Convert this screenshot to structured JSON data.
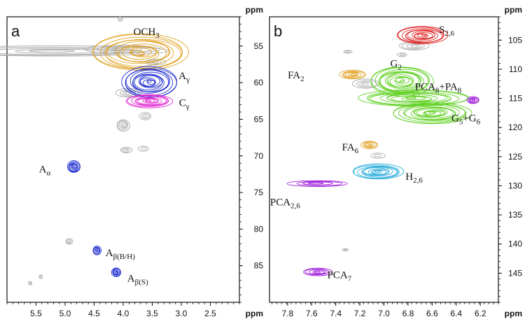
{
  "chart_data": [
    {
      "type": "2D HSQC NMR contour",
      "panel_label": "a",
      "x_unit": "ppm",
      "y_unit": "ppm",
      "x_range": [
        6.0,
        2.0
      ],
      "y_range": [
        51,
        90
      ],
      "x_ticks": [
        "5.5",
        "5.0",
        "4.5",
        "4.0",
        "3.5",
        "3.0",
        "2.5"
      ],
      "y_ticks": [
        "55",
        "60",
        "65",
        "70",
        "75",
        "80",
        "85"
      ],
      "signals": [
        {
          "label_main": "OCH",
          "label_sub": "3",
          "x": 3.7,
          "y": 55.9,
          "x_span": 1.65,
          "y_span": 5.0,
          "color": "#e0a020",
          "label_x": 3.6,
          "label_y": 53.2
        },
        {
          "label_main": "A",
          "label_sub": "γ",
          "x": 3.55,
          "y": 59.9,
          "x_span": 0.95,
          "y_span": 4.2,
          "color": "#1a2ad0",
          "label_x": 2.95,
          "label_y": 59.2
        },
        {
          "label_main": "C",
          "label_sub": "γ",
          "x": 3.55,
          "y": 62.5,
          "x_span": 0.8,
          "y_span": 1.8,
          "color": "#e020d0",
          "label_x": 2.95,
          "label_y": 62.9
        },
        {
          "label_main": "A",
          "label_sub": "α",
          "x": 4.85,
          "y": 71.5,
          "x_span": 0.22,
          "y_span": 1.6,
          "color": "#1a2ad0",
          "label_x": 5.35,
          "label_y": 72.0
        },
        {
          "label_main": "A",
          "label_sub": "β(B/H)",
          "x": 4.45,
          "y": 82.9,
          "x_span": 0.14,
          "y_span": 1.2,
          "color": "#1a2ad0",
          "label_x": 4.05,
          "label_y": 83.4
        },
        {
          "label_main": "A",
          "label_sub": "β(S)",
          "x": 4.12,
          "y": 85.9,
          "x_span": 0.16,
          "y_span": 1.2,
          "color": "#1a2ad0",
          "label_x": 3.75,
          "label_y": 86.9
        }
      ],
      "unassigned": [
        {
          "x": 5.2,
          "y": 55.7,
          "x_span": 3.9,
          "y_span": 1.4
        },
        {
          "x": 4.0,
          "y": 55.4,
          "x_span": 1.3,
          "y_span": 1.1
        },
        {
          "x": 3.45,
          "y": 57.2,
          "x_span": 0.35,
          "y_span": 0.8
        },
        {
          "x": 3.9,
          "y": 61.4,
          "x_span": 0.45,
          "y_span": 1.2
        },
        {
          "x": 4.0,
          "y": 65.8,
          "x_span": 0.22,
          "y_span": 1.6
        },
        {
          "x": 3.62,
          "y": 64.6,
          "x_span": 0.2,
          "y_span": 1.0
        },
        {
          "x": 3.95,
          "y": 69.2,
          "x_span": 0.2,
          "y_span": 0.8
        },
        {
          "x": 3.65,
          "y": 69.0,
          "x_span": 0.18,
          "y_span": 0.7
        },
        {
          "x": 4.93,
          "y": 81.7,
          "x_span": 0.12,
          "y_span": 0.8
        },
        {
          "x": 4.05,
          "y": 51.3,
          "x_span": 0.08,
          "y_span": 0.6
        },
        {
          "x": 5.42,
          "y": 86.5,
          "x_span": 0.06,
          "y_span": 0.5
        },
        {
          "x": 5.6,
          "y": 87.4,
          "x_span": 0.06,
          "y_span": 0.5
        }
      ]
    },
    {
      "type": "2D HSQC NMR contour",
      "panel_label": "b",
      "x_unit": "ppm",
      "y_unit": "ppm",
      "x_range": [
        7.95,
        6.05
      ],
      "y_range": [
        101,
        150
      ],
      "x_ticks": [
        "7.8",
        "7.6",
        "7.4",
        "7.2",
        "7.0",
        "6.8",
        "6.6",
        "6.4",
        "6.2"
      ],
      "y_ticks": [
        "105",
        "110",
        "115",
        "120",
        "125",
        "130",
        "135",
        "140",
        "145"
      ],
      "signals": [
        {
          "label_main": "S",
          "label_sub": "2,6",
          "x": 6.68,
          "y": 104.2,
          "x_span": 0.42,
          "y_span": 3.0,
          "color": "#e02020",
          "label_x": 6.48,
          "label_y": 103.4
        },
        {
          "label_main": "FA",
          "label_sub": "2",
          "x": 7.26,
          "y": 110.9,
          "x_span": 0.22,
          "y_span": 1.5,
          "color": "#e0a020",
          "label_x": 7.73,
          "label_y": 111.2
        },
        {
          "label_main": "G",
          "label_sub": "2",
          "x": 6.85,
          "y": 112.0,
          "x_span": 0.52,
          "y_span": 5.0,
          "color": "#5fd020",
          "label_x": 6.9,
          "label_y": 109.2
        },
        {
          "label_main": "PCA",
          "label_sub": "8",
          "label_main2": "+PA",
          "label_sub2": "8",
          "x": 6.75,
          "y": 115.0,
          "x_span": 0.92,
          "y_span": 2.8,
          "color": "#5fd020",
          "label_x": 6.55,
          "label_y": 113.2
        },
        {
          "label_main": "G",
          "label_sub": "5",
          "label_main2": "+G",
          "label_sub2": "6",
          "x": 6.6,
          "y": 117.5,
          "x_span": 0.65,
          "y_span": 3.6,
          "color": "#5fd020",
          "label_x": 6.32,
          "label_y": 118.6
        },
        {
          "label_main": "FA",
          "label_sub": "6",
          "x": 7.12,
          "y": 123.0,
          "x_span": 0.14,
          "y_span": 1.3,
          "color": "#e0a020",
          "label_x": 7.28,
          "label_y": 123.6
        },
        {
          "label_main": "H",
          "label_sub": "2,6",
          "x": 7.05,
          "y": 127.6,
          "x_span": 0.42,
          "y_span": 2.6,
          "color": "#20a8d8",
          "label_x": 6.75,
          "label_y": 128.6
        },
        {
          "label_main": "PCA",
          "label_sub": "2,6",
          "x": 7.55,
          "y": 129.6,
          "x_span": 0.5,
          "y_span": 1.0,
          "color": "#9a10d8",
          "label_x": 7.82,
          "label_y": 133.0
        },
        {
          "label_main": "PCA",
          "label_sub": "7",
          "x": 7.55,
          "y": 144.8,
          "x_span": 0.24,
          "y_span": 1.3,
          "color": "#9a10d8",
          "label_x": 7.37,
          "label_y": 145.5
        },
        {
          "label_main": "",
          "label_sub": "",
          "x": 6.26,
          "y": 115.3,
          "x_span": 0.1,
          "y_span": 1.2,
          "color": "#9a10d8",
          "label_x": 6.26,
          "label_y": 115.3
        }
      ],
      "unassigned": [
        {
          "x": 6.75,
          "y": 106.0,
          "x_span": 0.25,
          "y_span": 1.5
        },
        {
          "x": 6.85,
          "y": 107.5,
          "x_span": 0.08,
          "y_span": 0.6
        },
        {
          "x": 7.3,
          "y": 107.0,
          "x_span": 0.07,
          "y_span": 0.5
        },
        {
          "x": 7.15,
          "y": 112.5,
          "x_span": 0.22,
          "y_span": 1.6
        },
        {
          "x": 7.05,
          "y": 124.8,
          "x_span": 0.12,
          "y_span": 0.9
        },
        {
          "x": 7.32,
          "y": 141.0,
          "x_span": 0.05,
          "y_span": 0.4
        }
      ]
    }
  ]
}
